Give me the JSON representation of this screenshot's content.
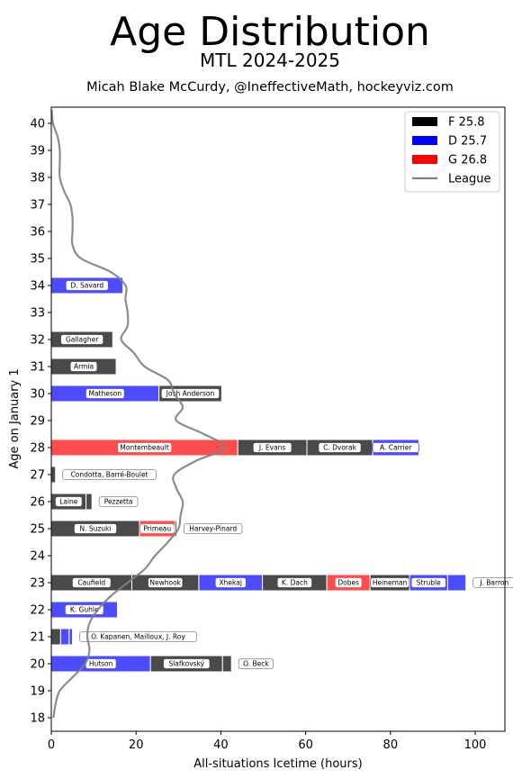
{
  "chart_data": {
    "type": "bar",
    "orientation": "horizontal-stacked",
    "title": "Age Distribution",
    "subtitle": "MTL 2024-2025",
    "credit": "Micah Blake McCurdy, @IneffectiveMath, hockeyviz.com",
    "xlabel": "All-situations Icetime (hours)",
    "ylabel": "Age on January 1",
    "xlim": [
      0,
      107
    ],
    "ylim": [
      17.5,
      40.6
    ],
    "xticks": [
      0,
      20,
      40,
      60,
      80,
      100
    ],
    "yticks": [
      18,
      19,
      20,
      21,
      22,
      23,
      24,
      25,
      26,
      27,
      28,
      29,
      30,
      31,
      32,
      33,
      34,
      35,
      36,
      37,
      38,
      39,
      40
    ],
    "grid": false,
    "legend_position": "top-right",
    "colors": {
      "F": "#4a4a4a",
      "D": "#4d4dff",
      "G": "#ff4d4d",
      "league": "#808080"
    },
    "legend": [
      {
        "label": "F 25.8",
        "color": "#000000",
        "kind": "box"
      },
      {
        "label": "D 25.7",
        "color": "#0000ff",
        "kind": "box"
      },
      {
        "label": "G 26.8",
        "color": "#ff0000",
        "kind": "box"
      },
      {
        "label": "League",
        "color": "#808080",
        "kind": "line"
      }
    ],
    "players": [
      {
        "name": "D. Savard",
        "pos": "D",
        "age": 34,
        "icetime": 16.9
      },
      {
        "name": "Gallagher",
        "pos": "F",
        "age": 32,
        "icetime": 14.5
      },
      {
        "name": "Armia",
        "pos": "F",
        "age": 31,
        "icetime": 15.3
      },
      {
        "name": "Matheson",
        "pos": "D",
        "age": 30,
        "icetime": 25.4
      },
      {
        "name": "Josh Anderson",
        "pos": "F",
        "age": 30,
        "icetime": 14.8
      },
      {
        "name": "Montembeault",
        "pos": "G",
        "age": 28,
        "icetime": 44.0
      },
      {
        "name": "J. Evans",
        "pos": "F",
        "age": 28,
        "icetime": 16.3
      },
      {
        "name": "C. Dvorak",
        "pos": "F",
        "age": 28,
        "icetime": 15.5
      },
      {
        "name": "A. Carrier",
        "pos": "D",
        "age": 28,
        "icetime": 10.9
      },
      {
        "name": "Condotta, Barré-Boulet",
        "pos": "F",
        "age": 27,
        "icetime": 1.0,
        "label_outside": true
      },
      {
        "name": "Laine",
        "pos": "F",
        "age": 26,
        "icetime": 8.2
      },
      {
        "name": "Pezzetta",
        "pos": "F",
        "age": 26,
        "icetime": 1.4,
        "label_outside": true
      },
      {
        "name": "N. Suzuki",
        "pos": "F",
        "age": 25,
        "icetime": 20.8
      },
      {
        "name": "Primeau",
        "pos": "G",
        "age": 25,
        "icetime": 8.4
      },
      {
        "name": "Harvey-Pinard",
        "pos": "F",
        "age": 25,
        "icetime": 0.4,
        "label_outside": true
      },
      {
        "name": "Caufield",
        "pos": "F",
        "age": 23,
        "icetime": 19.0
      },
      {
        "name": "Newhook",
        "pos": "F",
        "age": 23,
        "icetime": 15.8
      },
      {
        "name": "Xhekaj",
        "pos": "D",
        "age": 23,
        "icetime": 15.0
      },
      {
        "name": "K. Dach",
        "pos": "F",
        "age": 23,
        "icetime": 15.2
      },
      {
        "name": "Dobes",
        "pos": "G",
        "age": 23,
        "icetime": 10.2
      },
      {
        "name": "Heineman",
        "pos": "F",
        "age": 23,
        "icetime": 9.3
      },
      {
        "name": "Struble",
        "pos": "D",
        "age": 23,
        "icetime": 9.0
      },
      {
        "name": "J. Barron",
        "pos": "D",
        "age": 23,
        "icetime": 4.3,
        "label_outside": true
      },
      {
        "name": "K. Guhle",
        "pos": "D",
        "age": 22,
        "icetime": 15.6
      },
      {
        "name": "O. Kapanen, Mailloux, J. Roy",
        "pos": "mixed",
        "age": 21,
        "icetime": 5.0,
        "label_outside": true,
        "segments": [
          {
            "pos": "F",
            "icetime": 2.2
          },
          {
            "pos": "D",
            "icetime": 2.0
          },
          {
            "pos": "D",
            "icetime": 0.8
          }
        ]
      },
      {
        "name": "Hutson",
        "pos": "D",
        "age": 20,
        "icetime": 23.4
      },
      {
        "name": "Slafkovský",
        "pos": "F",
        "age": 20,
        "icetime": 17.0
      },
      {
        "name": "O. Beck",
        "pos": "F",
        "age": 20,
        "icetime": 2.1,
        "label_outside": true
      }
    ],
    "league_curve": [
      [
        18.0,
        0.5
      ],
      [
        18.5,
        1.0
      ],
      [
        19.0,
        2.0
      ],
      [
        19.5,
        5.0
      ],
      [
        20.0,
        8.0
      ],
      [
        20.5,
        9.0
      ],
      [
        21.0,
        8.5
      ],
      [
        21.5,
        9.0
      ],
      [
        22.0,
        11.0
      ],
      [
        22.5,
        14.0
      ],
      [
        23.0,
        18.0
      ],
      [
        23.5,
        22.0
      ],
      [
        24.0,
        24.5
      ],
      [
        24.5,
        27.5
      ],
      [
        25.0,
        30.0
      ],
      [
        25.5,
        30.5
      ],
      [
        26.0,
        31.0
      ],
      [
        26.5,
        29.5
      ],
      [
        27.0,
        29.0
      ],
      [
        27.5,
        34.0
      ],
      [
        28.0,
        41.0
      ],
      [
        28.5,
        36.0
      ],
      [
        29.0,
        29.5
      ],
      [
        29.5,
        31.0
      ],
      [
        30.0,
        29.0
      ],
      [
        30.5,
        27.5
      ],
      [
        31.0,
        22.0
      ],
      [
        31.5,
        19.5
      ],
      [
        32.0,
        16.5
      ],
      [
        32.5,
        18.0
      ],
      [
        33.0,
        18.0
      ],
      [
        33.5,
        17.5
      ],
      [
        34.0,
        17.5
      ],
      [
        34.5,
        14.0
      ],
      [
        35.0,
        7.0
      ],
      [
        35.5,
        5.0
      ],
      [
        36.0,
        5.0
      ],
      [
        36.5,
        5.0
      ],
      [
        37.0,
        4.5
      ],
      [
        37.5,
        3.0
      ],
      [
        38.0,
        2.0
      ],
      [
        38.5,
        2.0
      ],
      [
        39.0,
        2.0
      ],
      [
        39.5,
        1.5
      ],
      [
        40.0,
        0.4
      ],
      [
        40.5,
        0.1
      ]
    ]
  }
}
